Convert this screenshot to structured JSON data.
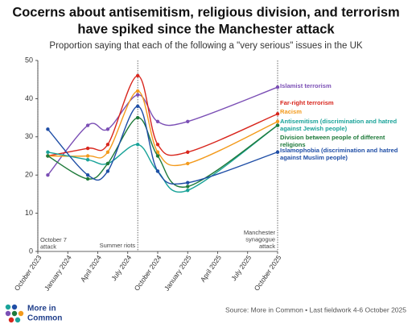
{
  "chart_data": {
    "type": "line",
    "title": [
      "Cocerns about antisemitism, religious division, and terrorism",
      "have spiked since the Manchester attack"
    ],
    "subtitle": "Proportion saying that each of the following a \"very serious\" issues in the UK",
    "x": [
      "2023-11",
      "2024-03",
      "2024-05",
      "2024-08",
      "2024-10",
      "2025-01",
      "2025-10"
    ],
    "xlim": [
      "2023-10",
      "2025-10"
    ],
    "xticks": [
      {
        "value": "2023-10",
        "label": "October 2023"
      },
      {
        "value": "2024-01",
        "label": "January 2024"
      },
      {
        "value": "2024-04",
        "label": "April 2024"
      },
      {
        "value": "2024-07",
        "label": "July 2024"
      },
      {
        "value": "2024-10",
        "label": "October 2024"
      },
      {
        "value": "2025-01",
        "label": "January 2025"
      },
      {
        "value": "2025-04",
        "label": "April 2025"
      },
      {
        "value": "2025-07",
        "label": "July 2025"
      },
      {
        "value": "2025-10",
        "label": "October 2025"
      }
    ],
    "ylim": [
      0,
      50
    ],
    "yticks": [
      0,
      10,
      20,
      30,
      40,
      50
    ],
    "grid": false,
    "series": [
      {
        "name": "Islamist terrorism",
        "color": "#7b4fb5",
        "values": [
          20,
          33,
          32,
          41,
          34,
          34,
          43
        ]
      },
      {
        "name": "Far-right terrorism",
        "color": "#d8261d",
        "values": [
          25,
          27,
          28,
          46,
          28,
          26,
          36
        ]
      },
      {
        "name": "Racism",
        "color": "#f39a1c",
        "values": [
          25,
          25,
          26,
          42,
          26,
          23,
          34
        ]
      },
      {
        "name": "Antisemitism (discrimination and hatred against Jewish people)",
        "color": "#1aa399",
        "values": [
          26,
          24,
          23,
          28,
          21,
          16,
          33
        ]
      },
      {
        "name": "Division between people of different religions",
        "color": "#1e7a3a",
        "values": [
          25,
          19,
          23,
          35,
          25,
          17,
          33
        ]
      },
      {
        "name": "Islamophobia (discrimination and hatred against Muslim people)",
        "color": "#1f4ea6",
        "values": [
          32,
          20,
          21,
          38,
          21,
          18,
          26
        ]
      }
    ],
    "annotations": [
      {
        "x": "2023-10",
        "lines": [
          "October 7",
          "attack"
        ]
      },
      {
        "x": "2024-08",
        "lines": [
          "Summer riots"
        ]
      },
      {
        "x": "2025-10",
        "lines": [
          "Manchester",
          "synagogue",
          "attack"
        ]
      }
    ],
    "source": "Source: More in Common • Last fieldwork 4-6 October 2025",
    "logo": [
      "More in",
      "Common"
    ]
  }
}
